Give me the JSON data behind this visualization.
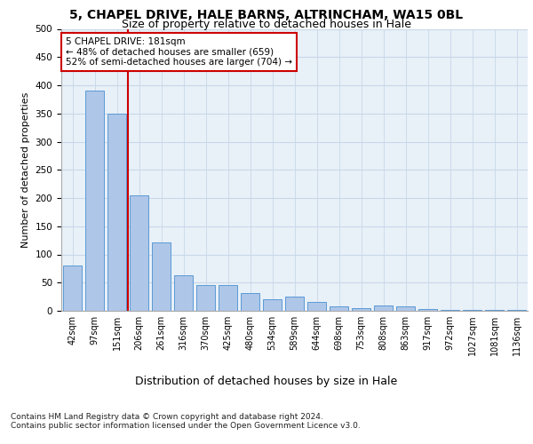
{
  "title_line1": "5, CHAPEL DRIVE, HALE BARNS, ALTRINCHAM, WA15 0BL",
  "title_line2": "Size of property relative to detached houses in Hale",
  "xlabel": "Distribution of detached houses by size in Hale",
  "ylabel": "Number of detached properties",
  "categories": [
    "42sqm",
    "97sqm",
    "151sqm",
    "206sqm",
    "261sqm",
    "316sqm",
    "370sqm",
    "425sqm",
    "480sqm",
    "534sqm",
    "589sqm",
    "644sqm",
    "698sqm",
    "753sqm",
    "808sqm",
    "863sqm",
    "917sqm",
    "972sqm",
    "1027sqm",
    "1081sqm",
    "1136sqm"
  ],
  "values": [
    80,
    390,
    350,
    205,
    122,
    63,
    45,
    45,
    32,
    20,
    25,
    15,
    8,
    5,
    10,
    8,
    3,
    2,
    1,
    1,
    1
  ],
  "bar_color": "#aec6e8",
  "bar_edge_color": "#5b9bd5",
  "vline_index": 2,
  "vline_color": "#cc0000",
  "annotation_text": "5 CHAPEL DRIVE: 181sqm\n← 48% of detached houses are smaller (659)\n52% of semi-detached houses are larger (704) →",
  "annotation_box_color": "#ffffff",
  "annotation_box_edge": "#cc0000",
  "footnote": "Contains HM Land Registry data © Crown copyright and database right 2024.\nContains public sector information licensed under the Open Government Licence v3.0.",
  "ylim": [
    0,
    500
  ],
  "yticks": [
    0,
    50,
    100,
    150,
    200,
    250,
    300,
    350,
    400,
    450,
    500
  ],
  "grid_color": "#c8d8e8",
  "background_color": "#e8f0f8",
  "title1_fontsize": 10,
  "title2_fontsize": 9,
  "ylabel_fontsize": 8,
  "xlabel_fontsize": 9,
  "tick_fontsize": 7,
  "annot_fontsize": 7.5,
  "footnote_fontsize": 6.5
}
